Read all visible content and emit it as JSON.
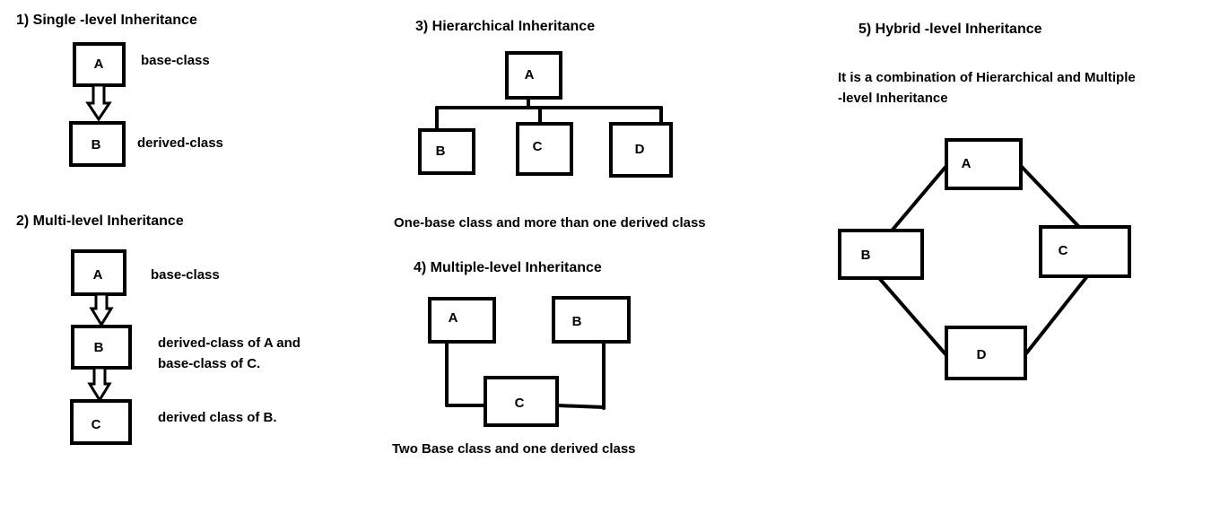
{
  "sections": {
    "single": {
      "title": "1) Single -level Inheritance",
      "nodes": [
        "A",
        "B"
      ],
      "labels": [
        "base-class",
        "derived-class"
      ]
    },
    "multi": {
      "title": "2) Multi-level Inheritance",
      "nodes": [
        "A",
        "B",
        "C"
      ],
      "labels": [
        "base-class",
        "derived-class of A and",
        "base-class of C.",
        "derived class of B."
      ]
    },
    "hierarchical": {
      "title": "3) Hierarchical Inheritance",
      "nodes": [
        "A",
        "B",
        "C",
        "D"
      ],
      "caption": "One-base class and more than one derived class"
    },
    "multiple": {
      "title": "4) Multiple-level Inheritance",
      "nodes": [
        "A",
        "B",
        "C"
      ],
      "caption": "Two Base class and one derived class"
    },
    "hybrid": {
      "title": "5) Hybrid -level Inheritance",
      "description": [
        "It is a combination of Hierarchical and Multiple",
        "-level Inheritance"
      ],
      "nodes": [
        "A",
        "B",
        "C",
        "D"
      ]
    }
  }
}
